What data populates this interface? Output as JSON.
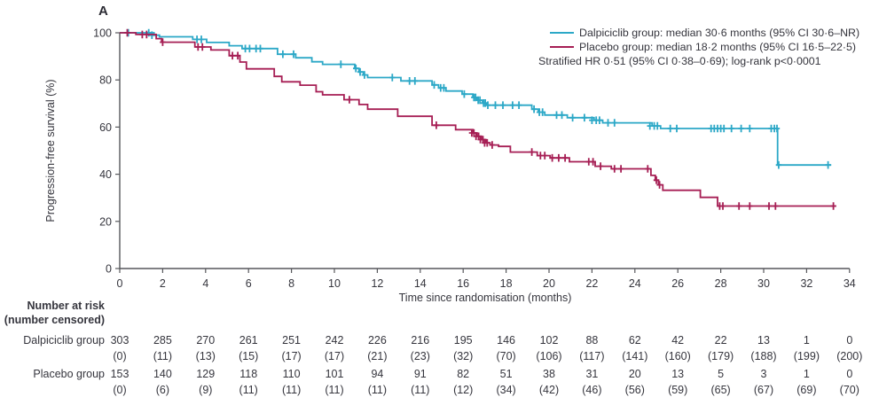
{
  "chart_data": {
    "type": "line",
    "subtype": "kaplan-meier-step",
    "panel_label": "A",
    "xlabel": "Time since randomisation (months)",
    "ylabel": "Progression-free survival (%)",
    "xlim": [
      0,
      34
    ],
    "ylim": [
      0,
      100
    ],
    "x_ticks": [
      0,
      2,
      4,
      6,
      8,
      10,
      12,
      14,
      16,
      18,
      20,
      22,
      24,
      26,
      28,
      30,
      32,
      34
    ],
    "y_ticks": [
      0,
      20,
      40,
      60,
      80,
      100
    ],
    "grid": "off",
    "legend_position": "top-right",
    "axis_color": "#56575b",
    "text_color": "#35353d",
    "annotation": "Stratified HR 0·51 (95% CI 0·38–0·69); log-rank p<0·0001",
    "series": [
      {
        "name": "Dalpiciclib group",
        "legend": "Dalpiciclib group: median 30·6 months (95% CI 30·6–NR)",
        "color": "#2CA8C7",
        "step_points": [
          [
            0,
            100
          ],
          [
            1.6,
            99.0
          ],
          [
            1.85,
            98.3
          ],
          [
            3.4,
            97.2
          ],
          [
            4.05,
            95.9
          ],
          [
            5.1,
            94.5
          ],
          [
            5.7,
            93.3
          ],
          [
            7.35,
            90.9
          ],
          [
            8.2,
            89.4
          ],
          [
            8.95,
            87.7
          ],
          [
            9.45,
            86.6
          ],
          [
            10.95,
            84.9
          ],
          [
            11.15,
            83.4
          ],
          [
            11.35,
            82.1
          ],
          [
            11.55,
            81.0
          ],
          [
            13.1,
            79.6
          ],
          [
            14.55,
            77.9
          ],
          [
            14.85,
            76.6
          ],
          [
            15.2,
            75.3
          ],
          [
            15.95,
            74.0
          ],
          [
            16.45,
            72.6
          ],
          [
            16.65,
            71.4
          ],
          [
            16.9,
            70.2
          ],
          [
            17.1,
            69.3
          ],
          [
            19.2,
            67.6
          ],
          [
            19.5,
            66.3
          ],
          [
            19.8,
            65.1
          ],
          [
            20.85,
            64.0
          ],
          [
            22.1,
            62.9
          ],
          [
            22.5,
            61.8
          ],
          [
            24.8,
            60.5
          ],
          [
            25.2,
            59.4
          ],
          [
            30.65,
            43.9
          ],
          [
            33.15,
            43.9
          ]
        ],
        "censor_marks": [
          [
            0.4,
            100
          ],
          [
            1.35,
            100
          ],
          [
            1.5,
            99.0
          ],
          [
            3.6,
            97.2
          ],
          [
            3.8,
            97.2
          ],
          [
            5.85,
            93.3
          ],
          [
            6.05,
            93.3
          ],
          [
            6.35,
            93.3
          ],
          [
            6.55,
            93.3
          ],
          [
            7.6,
            90.9
          ],
          [
            8.1,
            90.9
          ],
          [
            10.3,
            86.6
          ],
          [
            11.0,
            84.9
          ],
          [
            11.2,
            83.4
          ],
          [
            11.4,
            82.1
          ],
          [
            12.7,
            81.0
          ],
          [
            13.5,
            79.6
          ],
          [
            13.75,
            79.6
          ],
          [
            14.65,
            77.9
          ],
          [
            14.95,
            76.6
          ],
          [
            15.1,
            76.6
          ],
          [
            16.05,
            74.0
          ],
          [
            16.5,
            72.6
          ],
          [
            16.58,
            72.6
          ],
          [
            16.7,
            71.4
          ],
          [
            16.78,
            71.4
          ],
          [
            16.95,
            70.2
          ],
          [
            17.03,
            70.2
          ],
          [
            17.15,
            69.3
          ],
          [
            17.5,
            69.3
          ],
          [
            17.85,
            69.3
          ],
          [
            18.3,
            69.3
          ],
          [
            18.6,
            69.3
          ],
          [
            19.3,
            67.6
          ],
          [
            19.55,
            66.3
          ],
          [
            19.7,
            66.3
          ],
          [
            20.35,
            65.1
          ],
          [
            20.6,
            65.1
          ],
          [
            21.1,
            64.0
          ],
          [
            21.65,
            64.0
          ],
          [
            22.0,
            62.9
          ],
          [
            22.2,
            62.9
          ],
          [
            22.35,
            62.9
          ],
          [
            22.75,
            61.8
          ],
          [
            23.05,
            61.8
          ],
          [
            24.7,
            60.5
          ],
          [
            24.9,
            60.5
          ],
          [
            25.05,
            60.5
          ],
          [
            25.65,
            59.4
          ],
          [
            25.95,
            59.4
          ],
          [
            27.55,
            59.4
          ],
          [
            27.7,
            59.4
          ],
          [
            27.85,
            59.4
          ],
          [
            28.0,
            59.4
          ],
          [
            28.15,
            59.4
          ],
          [
            28.5,
            59.4
          ],
          [
            28.95,
            59.4
          ],
          [
            29.35,
            59.4
          ],
          [
            30.35,
            59.4
          ],
          [
            30.5,
            59.4
          ],
          [
            30.62,
            59.4
          ],
          [
            30.7,
            43.9
          ],
          [
            33.0,
            43.9
          ]
        ]
      },
      {
        "name": "Placebo group",
        "legend": "Placebo group: median 18·2 months (95% CI 16·5–22·5)",
        "color": "#A61E54",
        "step_points": [
          [
            0,
            100
          ],
          [
            0.75,
            99.3
          ],
          [
            1.7,
            97.5
          ],
          [
            1.95,
            96.0
          ],
          [
            3.5,
            94.0
          ],
          [
            4.25,
            92.7
          ],
          [
            5.1,
            90.3
          ],
          [
            5.6,
            87.6
          ],
          [
            5.9,
            84.7
          ],
          [
            7.2,
            81.5
          ],
          [
            7.55,
            79.2
          ],
          [
            8.4,
            77.8
          ],
          [
            9.15,
            75.0
          ],
          [
            9.45,
            73.7
          ],
          [
            10.45,
            71.6
          ],
          [
            11.15,
            69.6
          ],
          [
            11.55,
            67.6
          ],
          [
            12.95,
            64.6
          ],
          [
            14.55,
            60.8
          ],
          [
            15.65,
            58.9
          ],
          [
            16.45,
            57.5
          ],
          [
            16.65,
            56.1
          ],
          [
            16.85,
            54.7
          ],
          [
            17.05,
            53.3
          ],
          [
            17.25,
            52.4
          ],
          [
            17.65,
            51.8
          ],
          [
            18.2,
            49.4
          ],
          [
            19.45,
            47.9
          ],
          [
            20.05,
            46.9
          ],
          [
            20.95,
            45.3
          ],
          [
            22.15,
            43.4
          ],
          [
            22.9,
            42.3
          ],
          [
            24.75,
            39.5
          ],
          [
            24.95,
            37.5
          ],
          [
            25.1,
            35.5
          ],
          [
            25.3,
            33.2
          ],
          [
            27.05,
            30.2
          ],
          [
            27.85,
            26.5
          ],
          [
            33.35,
            26.5
          ]
        ],
        "censor_marks": [
          [
            0.35,
            100
          ],
          [
            1.05,
            99.3
          ],
          [
            1.25,
            99.3
          ],
          [
            2.0,
            96.0
          ],
          [
            3.65,
            94.0
          ],
          [
            3.85,
            94.0
          ],
          [
            5.25,
            90.3
          ],
          [
            5.5,
            90.3
          ],
          [
            10.7,
            71.6
          ],
          [
            14.75,
            60.8
          ],
          [
            16.4,
            57.5
          ],
          [
            16.5,
            57.5
          ],
          [
            16.6,
            56.1
          ],
          [
            16.72,
            56.1
          ],
          [
            16.8,
            54.7
          ],
          [
            16.92,
            54.7
          ],
          [
            17.0,
            53.3
          ],
          [
            17.12,
            53.3
          ],
          [
            17.35,
            52.4
          ],
          [
            19.2,
            49.4
          ],
          [
            19.6,
            47.9
          ],
          [
            19.8,
            47.9
          ],
          [
            20.15,
            46.9
          ],
          [
            20.45,
            46.9
          ],
          [
            20.75,
            46.9
          ],
          [
            21.85,
            45.3
          ],
          [
            22.05,
            45.3
          ],
          [
            22.4,
            43.4
          ],
          [
            23.05,
            42.3
          ],
          [
            23.35,
            42.3
          ],
          [
            24.6,
            42.3
          ],
          [
            25.0,
            37.5
          ],
          [
            25.15,
            35.5
          ],
          [
            27.95,
            26.5
          ],
          [
            28.1,
            26.5
          ],
          [
            28.85,
            26.5
          ],
          [
            29.35,
            26.5
          ],
          [
            30.25,
            26.5
          ],
          [
            30.55,
            26.5
          ],
          [
            33.25,
            26.5
          ]
        ]
      }
    ],
    "risk_table": {
      "header_line1": "Number at risk",
      "header_line2": "(number censored)",
      "rows": [
        {
          "label": "Dalpiciclib group",
          "at_risk": [
            "303",
            "285",
            "270",
            "261",
            "251",
            "242",
            "226",
            "216",
            "195",
            "146",
            "102",
            "88",
            "62",
            "42",
            "22",
            "13",
            "1",
            "0"
          ],
          "censored": [
            "(0)",
            "(11)",
            "(13)",
            "(15)",
            "(17)",
            "(17)",
            "(21)",
            "(23)",
            "(32)",
            "(70)",
            "(106)",
            "(117)",
            "(141)",
            "(160)",
            "(179)",
            "(188)",
            "(199)",
            "(200)"
          ]
        },
        {
          "label": "Placebo group",
          "at_risk": [
            "153",
            "140",
            "129",
            "118",
            "110",
            "101",
            "94",
            "91",
            "82",
            "51",
            "38",
            "31",
            "20",
            "13",
            "5",
            "3",
            "1",
            "0"
          ],
          "censored": [
            "(0)",
            "(6)",
            "(9)",
            "(11)",
            "(11)",
            "(11)",
            "(11)",
            "(11)",
            "(12)",
            "(34)",
            "(42)",
            "(46)",
            "(56)",
            "(59)",
            "(65)",
            "(67)",
            "(69)",
            "(70)"
          ]
        }
      ]
    }
  }
}
